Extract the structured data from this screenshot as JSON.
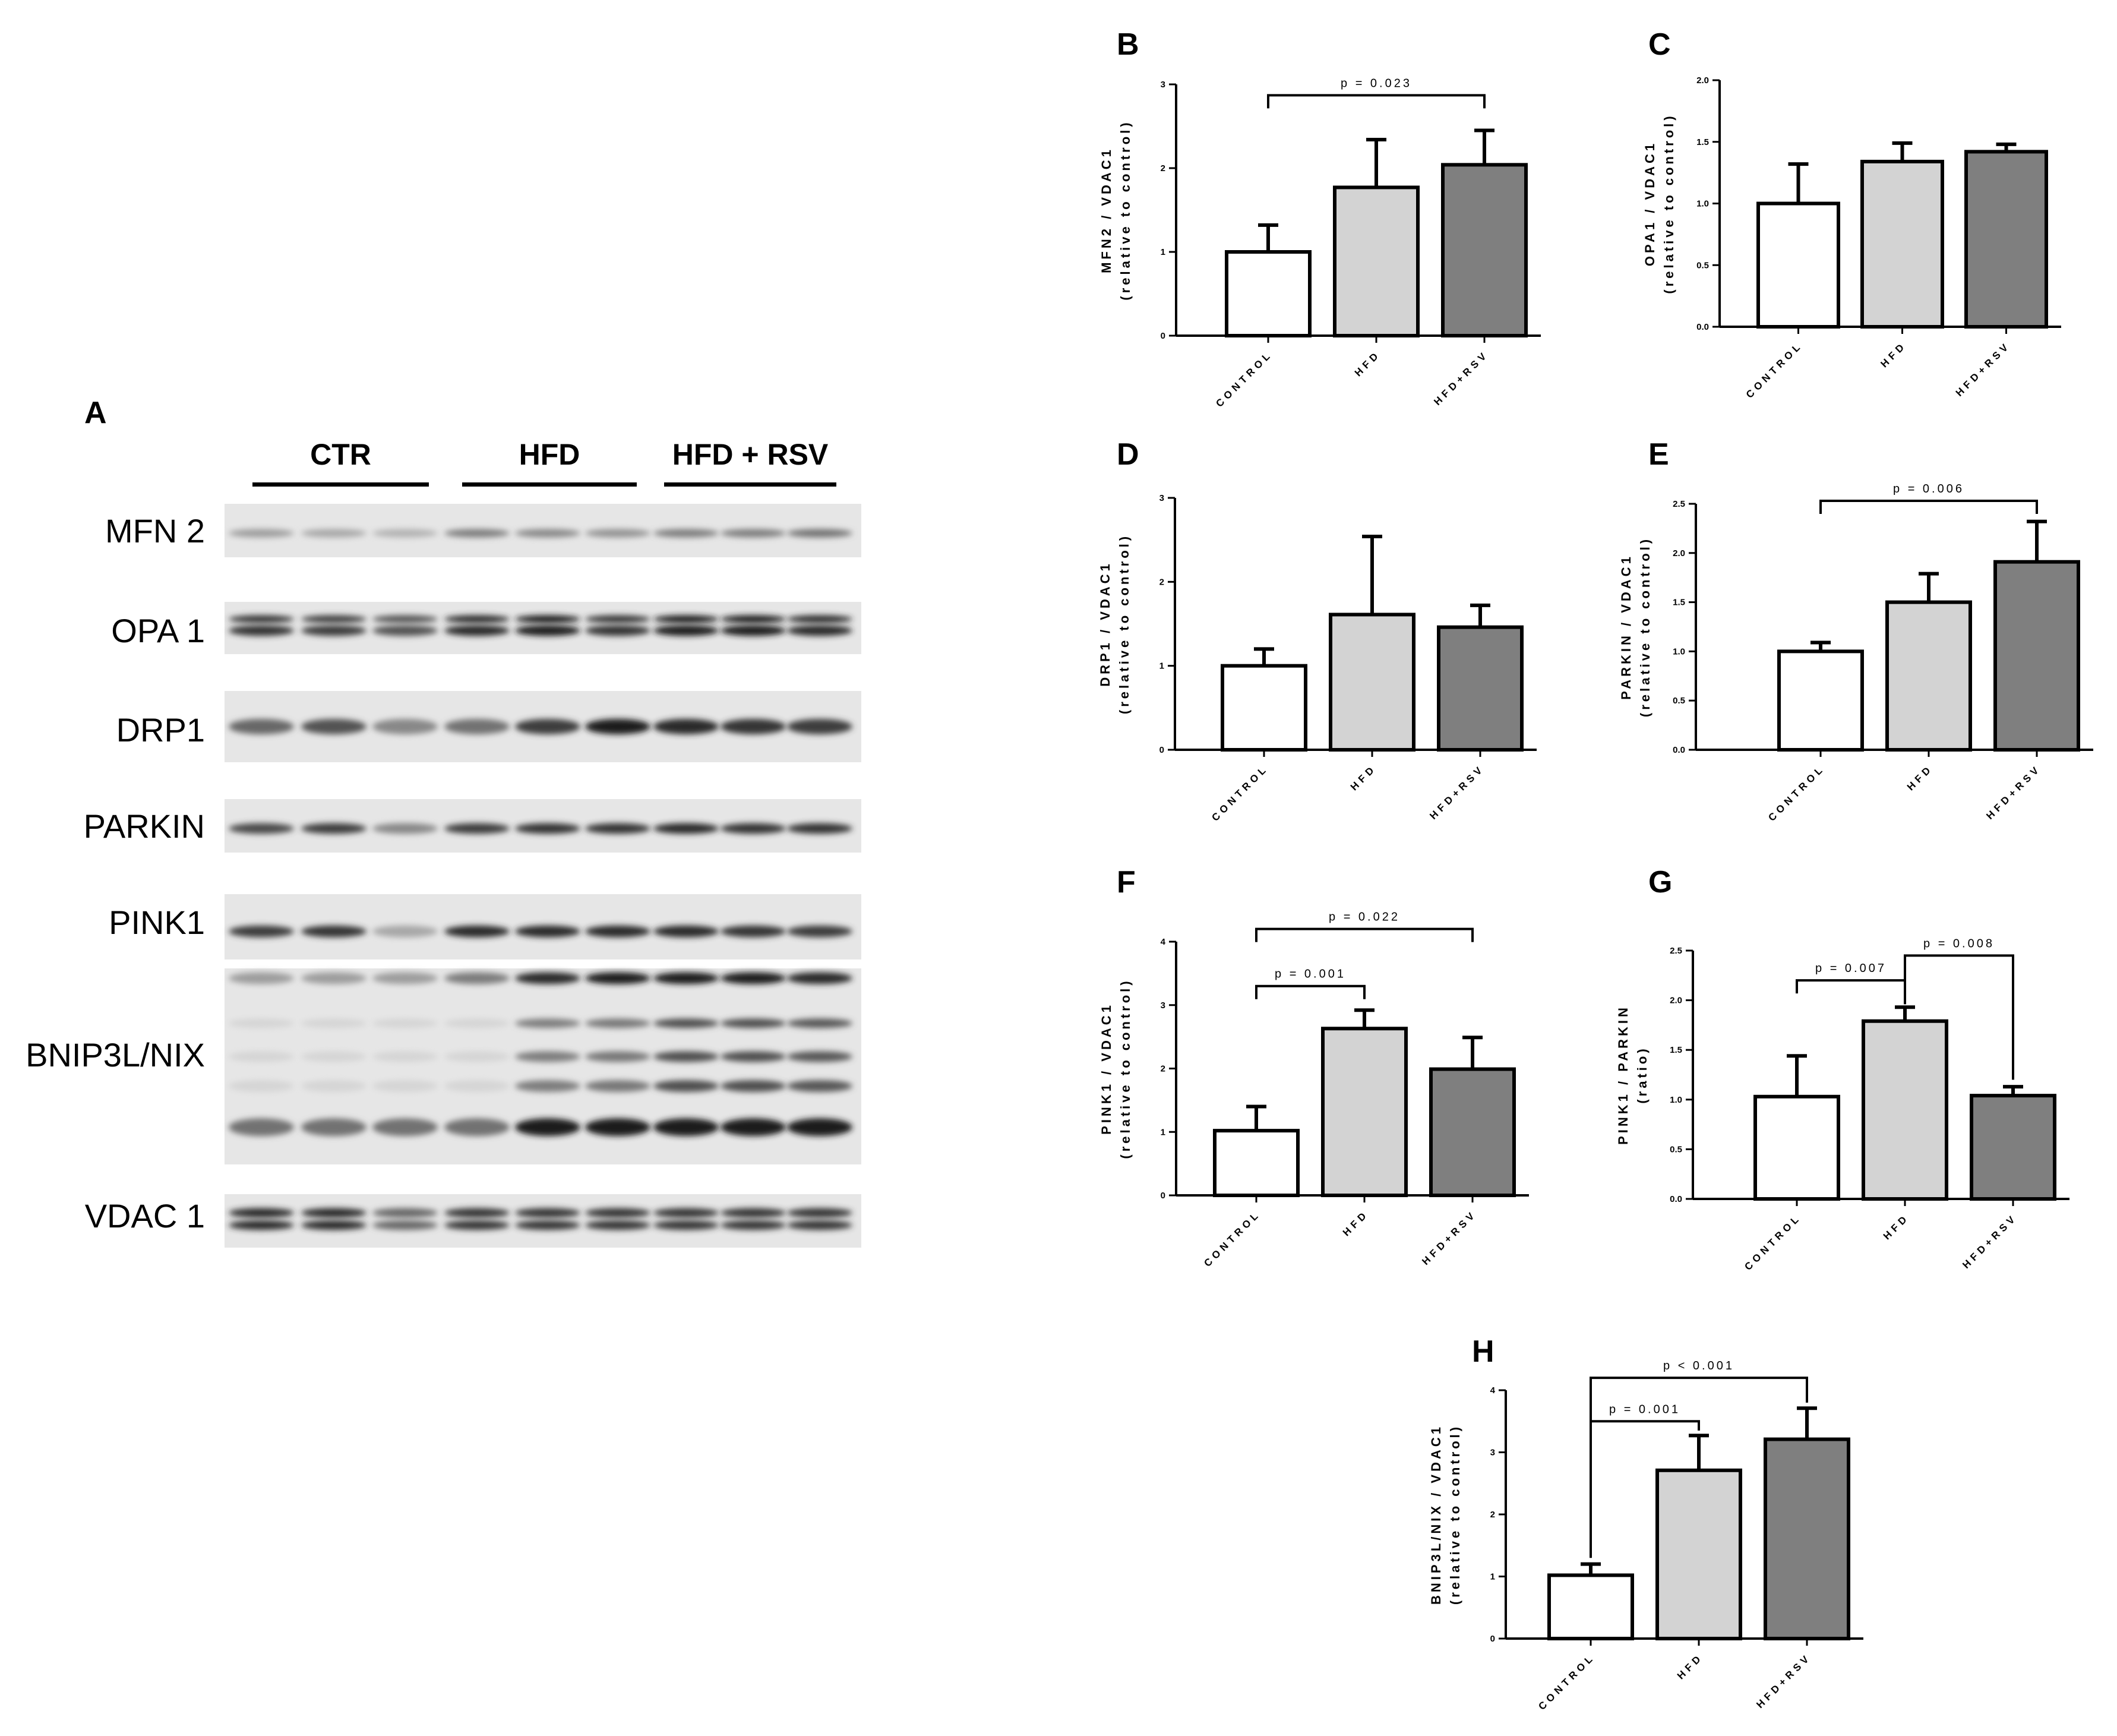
{
  "western_blot": {
    "letter": "A",
    "groups": [
      {
        "label": "CTR"
      },
      {
        "label": "HFD"
      },
      {
        "label": "HFD + RSV"
      }
    ],
    "rows": [
      {
        "label": "MFN 2",
        "intensity": [
          0.35,
          0.3,
          0.25,
          0.5,
          0.45,
          0.4,
          0.5,
          0.5,
          0.55
        ]
      },
      {
        "label": "OPA 1",
        "intensity": [
          0.85,
          0.8,
          0.7,
          0.9,
          0.95,
          0.85,
          0.95,
          0.95,
          0.9
        ]
      },
      {
        "label": "DRP1",
        "intensity": [
          0.6,
          0.7,
          0.45,
          0.55,
          0.8,
          0.95,
          0.9,
          0.85,
          0.8
        ]
      },
      {
        "label": "PARKIN",
        "intensity": [
          0.75,
          0.8,
          0.45,
          0.8,
          0.85,
          0.85,
          0.9,
          0.85,
          0.85
        ]
      },
      {
        "label": "PINK1",
        "intensity": [
          0.8,
          0.85,
          0.3,
          0.9,
          0.9,
          0.9,
          0.9,
          0.85,
          0.8
        ]
      },
      {
        "label": "BNIP3L/NIX",
        "intensity": [
          0.35,
          0.35,
          0.35,
          0.5,
          0.9,
          0.95,
          0.95,
          0.95,
          0.9
        ]
      },
      {
        "label": "VDAC 1",
        "intensity": [
          0.9,
          0.9,
          0.6,
          0.85,
          0.85,
          0.85,
          0.85,
          0.85,
          0.85
        ]
      }
    ]
  },
  "chart_data": [
    {
      "type": "bar",
      "letter": "B",
      "ylabel": "MFN2 / VDAC1",
      "ylabel2": "(relative to control)",
      "categories": [
        "CONTROL",
        "HFD",
        "HFD+RSV"
      ],
      "values": [
        1.0,
        1.77,
        2.04
      ],
      "errors": [
        0.32,
        0.57,
        0.41
      ],
      "ylim": [
        0,
        3
      ],
      "yticks": [
        {
          "v": 0,
          "t": "0"
        },
        {
          "v": 1,
          "t": "1"
        },
        {
          "v": 2,
          "t": "2"
        },
        {
          "v": 3,
          "t": "3"
        }
      ],
      "annotations": [
        {
          "text": "p = 0.023",
          "from": 0,
          "to": 2,
          "level": 2.87
        }
      ]
    },
    {
      "type": "bar",
      "letter": "C",
      "ylabel": "OPA1 / VDAC1",
      "ylabel2": "(relative to control)",
      "categories": [
        "CONTROL",
        "HFD",
        "HFD+RSV"
      ],
      "values": [
        1.0,
        1.34,
        1.42
      ],
      "errors": [
        0.32,
        0.15,
        0.06
      ],
      "ylim": [
        0,
        2
      ],
      "yticks": [
        {
          "v": 0,
          "t": "0.0"
        },
        {
          "v": 0.5,
          "t": "0.5"
        },
        {
          "v": 1,
          "t": "1.0"
        },
        {
          "v": 1.5,
          "t": "1.5"
        },
        {
          "v": 2,
          "t": "2.0"
        }
      ],
      "annotations": []
    },
    {
      "type": "bar",
      "letter": "D",
      "ylabel": "DRP1 / VDAC1",
      "ylabel2": "(relative to control)",
      "categories": [
        "CONTROL",
        "HFD",
        "HFD+RSV"
      ],
      "values": [
        1.0,
        1.61,
        1.46
      ],
      "errors": [
        0.2,
        0.93,
        0.26
      ],
      "ylim": [
        0,
        3
      ],
      "yticks": [
        {
          "v": 0,
          "t": "0"
        },
        {
          "v": 1,
          "t": "1"
        },
        {
          "v": 2,
          "t": "2"
        },
        {
          "v": 3,
          "t": "3"
        }
      ],
      "annotations": []
    },
    {
      "type": "bar",
      "letter": "E",
      "ylabel": "PARKIN / VDAC1",
      "ylabel2": "(relative to control)",
      "categories": [
        "CONTROL",
        "HFD",
        "HFD+RSV"
      ],
      "values": [
        1.0,
        1.5,
        1.91
      ],
      "errors": [
        0.09,
        0.29,
        0.41
      ],
      "ylim": [
        0,
        2.5
      ],
      "yticks": [
        {
          "v": 0,
          "t": "0.0"
        },
        {
          "v": 0.5,
          "t": "0.5"
        },
        {
          "v": 1,
          "t": "1.0"
        },
        {
          "v": 1.5,
          "t": "1.5"
        },
        {
          "v": 2,
          "t": "2.0"
        },
        {
          "v": 2.5,
          "t": "2.5"
        }
      ],
      "annotations": [
        {
          "text": "p = 0.006",
          "from": 0,
          "to": 2,
          "level": 2.53
        }
      ]
    },
    {
      "type": "bar",
      "letter": "F",
      "ylabel": "PINK1 / VDAC1",
      "ylabel2": "(relative to control)",
      "categories": [
        "CONTROL",
        "HFD",
        "HFD+RSV"
      ],
      "values": [
        1.02,
        2.63,
        1.99
      ],
      "errors": [
        0.38,
        0.29,
        0.5
      ],
      "ylim": [
        0,
        4
      ],
      "yticks": [
        {
          "v": 0,
          "t": "0"
        },
        {
          "v": 1,
          "t": "1"
        },
        {
          "v": 2,
          "t": "2"
        },
        {
          "v": 3,
          "t": "3"
        },
        {
          "v": 4,
          "t": "4"
        }
      ],
      "annotations": [
        {
          "text": "p = 0.001",
          "from": 0,
          "to": 1,
          "level": 3.3
        },
        {
          "text": "p = 0.022",
          "from": 0,
          "to": 2,
          "level": 4.2
        }
      ]
    },
    {
      "type": "bar",
      "letter": "G",
      "ylabel": "PINK1 / PARKIN",
      "ylabel2": "(ratio)",
      "categories": [
        "CONTROL",
        "HFD",
        "HFD+RSV"
      ],
      "values": [
        1.03,
        1.79,
        1.04
      ],
      "errors": [
        0.41,
        0.14,
        0.09
      ],
      "ylim": [
        0,
        2.5
      ],
      "yticks": [
        {
          "v": 0,
          "t": "0.0"
        },
        {
          "v": 0.5,
          "t": "0.5"
        },
        {
          "v": 1,
          "t": "1.0"
        },
        {
          "v": 1.5,
          "t": "1.5"
        },
        {
          "v": 2,
          "t": "2.0"
        },
        {
          "v": 2.5,
          "t": "2.5"
        }
      ],
      "annotations": [
        {
          "text": "p = 0.007",
          "from": 0,
          "to": 1,
          "level": 2.2,
          "right_drop_to": 1.96
        },
        {
          "text": "p = 0.008",
          "from": 1,
          "to": 2,
          "level": 2.45,
          "right_drop_to": 1.2,
          "left_drop_to": 1.96
        }
      ]
    },
    {
      "type": "bar",
      "letter": "H",
      "ylabel": "BNIP3L/NIX / VDAC1",
      "ylabel2": "(relative to control)",
      "categories": [
        "CONTROL",
        "HFD",
        "HFD+RSV"
      ],
      "values": [
        1.02,
        2.71,
        3.21
      ],
      "errors": [
        0.18,
        0.56,
        0.5
      ],
      "ylim": [
        0,
        4
      ],
      "yticks": [
        {
          "v": 0,
          "t": "0"
        },
        {
          "v": 1,
          "t": "1"
        },
        {
          "v": 2,
          "t": "2"
        },
        {
          "v": 3,
          "t": "3"
        },
        {
          "v": 4,
          "t": "4"
        }
      ],
      "annotations": [
        {
          "text": "p = 0.001",
          "from": 0,
          "to": 1,
          "level": 3.5,
          "left_drop_to": 1.3,
          "right_drop_to": 3.35
        },
        {
          "text": "p < 0.001",
          "from": 0,
          "to": 2,
          "level": 4.2,
          "left_drop_to": 1.3,
          "right_drop_to": 3.8
        }
      ]
    }
  ],
  "colors": {
    "control": "#ffffff",
    "hfd": "#d3d3d3",
    "hfd_rsv": "#7f7f7f",
    "outline": "#000000"
  }
}
